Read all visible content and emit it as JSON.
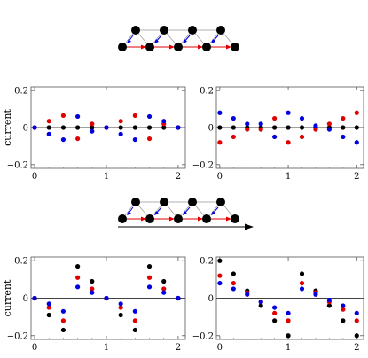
{
  "chart_data": [
    {
      "type": "scatter",
      "ylabel": "current",
      "xlim": [
        -0.05,
        2.1
      ],
      "ylim": [
        -0.22,
        0.22
      ],
      "xticks": [
        "0",
        "1",
        "2"
      ],
      "yticks": [
        "-0.2",
        "0",
        "0.2"
      ],
      "x": [
        0,
        0.2,
        0.4,
        0.6,
        0.8,
        1.0,
        1.2,
        1.4,
        1.6,
        1.8,
        2.0
      ],
      "series": [
        {
          "color": "#000000",
          "values": [
            0,
            0,
            0,
            0,
            0,
            0,
            0,
            0,
            0,
            0,
            0
          ]
        },
        {
          "color": "#e00000",
          "values": [
            0,
            0.035,
            0.065,
            -0.06,
            0.02,
            0,
            0.035,
            0.065,
            -0.06,
            0.02,
            0
          ]
        },
        {
          "color": "#0000e0",
          "values": [
            0,
            -0.035,
            -0.065,
            0.06,
            -0.02,
            0,
            -0.035,
            -0.065,
            0.06,
            0.035,
            0
          ]
        }
      ]
    },
    {
      "type": "scatter",
      "ylabel": "",
      "xlim": [
        -0.05,
        2.1
      ],
      "ylim": [
        -0.22,
        0.22
      ],
      "xticks": [
        "0",
        "1",
        "2"
      ],
      "yticks": [
        "-0.2",
        "0",
        "0.2"
      ],
      "x": [
        0,
        0.2,
        0.4,
        0.6,
        0.8,
        1.0,
        1.2,
        1.4,
        1.6,
        1.8,
        2.0
      ],
      "series": [
        {
          "color": "#000000",
          "values": [
            0,
            0,
            0,
            0,
            0,
            0,
            0,
            0,
            0,
            0,
            0
          ]
        },
        {
          "color": "#e00000",
          "values": [
            -0.08,
            -0.05,
            -0.01,
            -0.01,
            0.05,
            -0.08,
            -0.05,
            -0.01,
            0.02,
            0.05,
            0.08
          ]
        },
        {
          "color": "#0000e0",
          "values": [
            0.08,
            0.05,
            0.02,
            0.02,
            -0.05,
            0.08,
            0.05,
            0.01,
            -0.01,
            -0.05,
            -0.08
          ]
        }
      ]
    },
    {
      "type": "scatter",
      "ylabel": "current",
      "xlim": [
        -0.05,
        2.1
      ],
      "ylim": [
        -0.22,
        0.22
      ],
      "xticks": [
        "0",
        "1",
        "2"
      ],
      "yticks": [
        "-0.2",
        "0",
        "0.2"
      ],
      "x": [
        0,
        0.2,
        0.4,
        0.6,
        0.8,
        1.0,
        1.2,
        1.4,
        1.6,
        1.8,
        2.0
      ],
      "series": [
        {
          "color": "#000000",
          "values": [
            0,
            -0.09,
            -0.17,
            0.17,
            0.09,
            0,
            -0.09,
            -0.17,
            0.17,
            0.09,
            0
          ]
        },
        {
          "color": "#e00000",
          "values": [
            0,
            -0.05,
            -0.12,
            0.11,
            0.05,
            0,
            -0.05,
            -0.12,
            0.11,
            0.05,
            0
          ]
        },
        {
          "color": "#0000e0",
          "values": [
            0,
            -0.03,
            -0.07,
            0.06,
            0.03,
            0,
            -0.03,
            -0.07,
            0.06,
            0.03,
            0
          ]
        }
      ]
    },
    {
      "type": "scatter",
      "ylabel": "",
      "xlim": [
        -0.05,
        2.1
      ],
      "ylim": [
        -0.22,
        0.22
      ],
      "xticks": [
        "0",
        "1",
        "2"
      ],
      "yticks": [
        "-0.2",
        "0",
        "0.2"
      ],
      "x": [
        0,
        0.2,
        0.4,
        0.6,
        0.8,
        1.0,
        1.2,
        1.4,
        1.6,
        1.8,
        2.0
      ],
      "series": [
        {
          "color": "#000000",
          "values": [
            0.2,
            0.13,
            0.04,
            -0.04,
            -0.12,
            -0.2,
            0.13,
            0.04,
            -0.04,
            -0.12,
            -0.2
          ]
        },
        {
          "color": "#e00000",
          "values": [
            0.12,
            0.08,
            0.03,
            -0.02,
            -0.08,
            -0.12,
            0.08,
            0.03,
            -0.02,
            -0.06,
            -0.12
          ]
        },
        {
          "color": "#0000e0",
          "values": [
            0.08,
            0.05,
            0.02,
            -0.02,
            -0.05,
            -0.08,
            0.05,
            0.02,
            -0.01,
            -0.04,
            -0.08
          ]
        }
      ]
    }
  ],
  "colors": {
    "node": "#000000",
    "red_arrow": "#e00000",
    "blue_arrow": "#0000e0",
    "gray_edge": "#999999"
  },
  "schematics": [
    {
      "bias_arrow": false
    },
    {
      "bias_arrow": true
    }
  ]
}
